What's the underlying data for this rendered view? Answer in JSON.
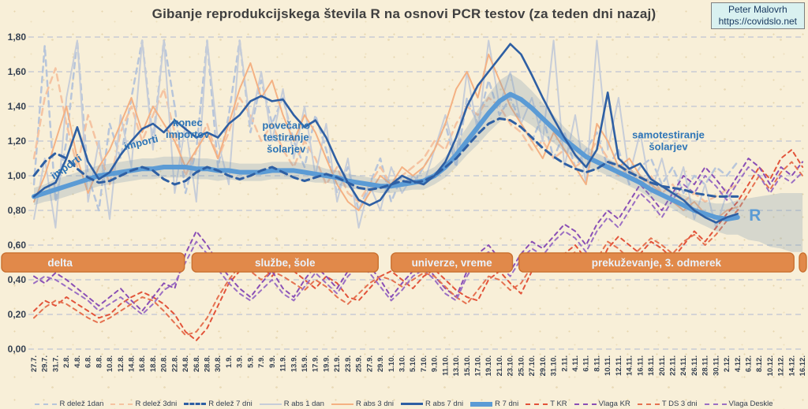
{
  "header": {
    "title": "Gibanje reprodukcijskega števila R na osnovi PCR testov (za teden dni nazaj)",
    "credit_line1": "Peter Malovrh",
    "credit_line2": "https://covidslo.net"
  },
  "chart_data": {
    "type": "line",
    "title": "Gibanje reprodukcijskega števila R na osnovi PCR testov (za teden dni nazaj)",
    "ylim": [
      0,
      1.8
    ],
    "y_step": 0.2,
    "decimal_comma": true,
    "grid": "horizontal-dashed",
    "legend_position": "bottom",
    "x_labels": [
      "27.7.",
      "29.7.",
      "31.7.",
      "2.8.",
      "4.8.",
      "6.8.",
      "8.8.",
      "10.8.",
      "12.8.",
      "14.8.",
      "16.8.",
      "18.8.",
      "20.8.",
      "22.8.",
      "24.8.",
      "26.8.",
      "28.8.",
      "30.8.",
      "1.9.",
      "3.9.",
      "5.9.",
      "7.9.",
      "9.9.",
      "11.9.",
      "13.9.",
      "15.9.",
      "17.9.",
      "19.9.",
      "21.9.",
      "23.9.",
      "25.9.",
      "27.9.",
      "29.9.",
      "1.10.",
      "3.10.",
      "5.10.",
      "7.10.",
      "9.10.",
      "11.10.",
      "13.10.",
      "15.10.",
      "17.10.",
      "19.10.",
      "21.10.",
      "23.10.",
      "25.10.",
      "27.10.",
      "29.10.",
      "31.10.",
      "2.11.",
      "4.11.",
      "6.11.",
      "8.11.",
      "10.11.",
      "12.11.",
      "14.11.",
      "16.11.",
      "18.11.",
      "20.11.",
      "22.11.",
      "24.11.",
      "26.11.",
      "28.11.",
      "30.11.",
      "2.12.",
      "4.12.",
      "6.12.",
      "8.12.",
      "10.12.",
      "12.12.",
      "14.12.",
      "16.12."
    ],
    "series": [
      {
        "name": "R delež 1dan",
        "color": "#b7c5da",
        "width": 2.5,
        "dash": "7 6",
        "values": [
          0.95,
          1.75,
          0.85,
          1.2,
          1.78,
          1.0,
          0.8,
          1.3,
          1.1,
          1.45,
          1.78,
          1.2,
          1.78,
          1.4,
          0.9,
          1.15,
          1.78,
          1.05,
          1.35,
          1.78,
          1.25,
          1.55,
          1.3,
          1.45,
          1.2,
          1.05,
          1.35,
          1.15,
          0.9,
          1.05,
          0.8,
          0.95,
          1.1,
          0.85,
          1.0,
          0.95,
          1.05,
          1.15,
          1.3,
          1.05,
          1.45,
          1.3,
          1.55,
          1.35,
          1.45,
          1.3,
          1.2,
          1.35,
          1.1,
          1.25,
          1.05,
          1.15,
          1.25,
          1.05,
          1.15,
          0.95,
          1.05,
          1.1,
          0.95,
          1.05,
          0.9,
          1.0,
          0.95,
          1.05,
          1.0,
          1.08,
          null,
          null,
          null,
          null,
          null,
          null
        ]
      },
      {
        "name": "R delež 3dni",
        "color": "#f5c3a1",
        "width": 2.5,
        "dash": "8 6",
        "values": [
          1.1,
          1.45,
          1.62,
          1.3,
          1.05,
          1.35,
          1.15,
          0.95,
          1.25,
          1.4,
          1.2,
          1.35,
          1.5,
          1.25,
          1.0,
          1.15,
          1.3,
          1.1,
          1.25,
          1.45,
          1.35,
          1.2,
          1.3,
          1.15,
          1.05,
          1.2,
          1.1,
          0.95,
          1.05,
          0.9,
          0.85,
          0.95,
          1.05,
          0.95,
          1.0,
          1.05,
          1.1,
          1.2,
          1.15,
          1.3,
          1.4,
          1.35,
          1.45,
          1.4,
          1.3,
          1.25,
          1.15,
          1.2,
          1.1,
          1.15,
          1.05,
          1.1,
          1.2,
          1.1,
          1.0,
          1.05,
          0.95,
          1.0,
          0.9,
          0.95,
          0.85,
          0.9,
          0.85,
          0.88,
          0.92,
          0.95,
          null,
          null,
          null,
          null,
          null,
          null
        ]
      },
      {
        "name": "R delež 7 dni",
        "color": "#2e5fa3",
        "width": 3,
        "dash": "9 6",
        "values": [
          1.0,
          1.08,
          1.13,
          1.1,
          1.04,
          0.99,
          0.96,
          0.97,
          1.0,
          1.03,
          1.05,
          1.03,
          0.98,
          0.95,
          0.97,
          1.02,
          1.05,
          1.03,
          1.0,
          0.98,
          1.0,
          1.03,
          1.05,
          1.02,
          0.99,
          0.97,
          0.99,
          1.01,
          0.99,
          0.96,
          0.93,
          0.92,
          0.93,
          0.95,
          0.97,
          0.96,
          0.97,
          1.0,
          1.05,
          1.1,
          1.17,
          1.24,
          1.3,
          1.33,
          1.32,
          1.28,
          1.22,
          1.16,
          1.11,
          1.07,
          1.04,
          1.02,
          1.04,
          1.08,
          1.06,
          1.02,
          0.99,
          0.96,
          0.94,
          0.93,
          0.92,
          0.9,
          0.89,
          0.88,
          0.88,
          0.88,
          null,
          null,
          null,
          null,
          null,
          null
        ]
      },
      {
        "name": "R abs 1 dan",
        "color": "#c7cdd8",
        "width": 2,
        "dash": null,
        "values": [
          0.75,
          1.1,
          0.7,
          1.45,
          1.78,
          0.85,
          1.2,
          0.75,
          1.35,
          1.05,
          1.78,
          1.15,
          1.78,
          0.9,
          1.3,
          0.85,
          1.78,
          1.2,
          0.95,
          1.78,
          1.3,
          1.6,
          1.2,
          1.5,
          1.1,
          1.4,
          1.0,
          1.3,
          0.85,
          1.1,
          0.7,
          0.95,
          0.8,
          1.05,
          0.9,
          1.0,
          0.95,
          1.15,
          1.35,
          1.1,
          1.6,
          1.25,
          1.78,
          1.4,
          1.6,
          1.3,
          1.45,
          1.2,
          1.78,
          1.05,
          1.35,
          0.95,
          1.78,
          1.15,
          1.45,
          1.0,
          1.25,
          0.9,
          1.1,
          0.85,
          1.05,
          0.75,
          0.95,
          0.7,
          0.9,
          0.8,
          null,
          null,
          null,
          null,
          null,
          null
        ]
      },
      {
        "name": "R abs 3 dni",
        "color": "#f4b183",
        "width": 2,
        "dash": null,
        "values": [
          0.85,
          1.0,
          1.2,
          1.4,
          1.1,
          0.9,
          1.05,
          1.15,
          1.3,
          1.45,
          1.25,
          1.4,
          1.3,
          1.2,
          1.05,
          1.15,
          1.25,
          1.1,
          1.3,
          1.5,
          1.65,
          1.45,
          1.55,
          1.35,
          1.2,
          1.35,
          1.25,
          1.1,
          0.95,
          0.85,
          0.8,
          0.9,
          1.0,
          0.95,
          1.05,
          1.0,
          1.05,
          1.15,
          1.3,
          1.5,
          1.6,
          1.45,
          1.7,
          1.55,
          1.4,
          1.3,
          1.2,
          1.1,
          1.25,
          1.15,
          1.05,
          0.95,
          1.3,
          1.2,
          1.05,
          1.1,
          1.0,
          0.95,
          0.9,
          0.85,
          0.8,
          0.85,
          0.78,
          0.75,
          0.8,
          0.82,
          null,
          null,
          null,
          null,
          null,
          null
        ]
      },
      {
        "name": "R abs 7 dni",
        "color": "#2e5fa3",
        "width": 2.6,
        "dash": null,
        "values": [
          0.88,
          0.93,
          0.96,
          1.1,
          1.28,
          1.08,
          0.98,
          1.02,
          1.12,
          1.2,
          1.27,
          1.3,
          1.25,
          1.32,
          1.27,
          1.22,
          1.25,
          1.22,
          1.3,
          1.35,
          1.43,
          1.46,
          1.43,
          1.44,
          1.35,
          1.28,
          1.32,
          1.22,
          1.08,
          0.96,
          0.86,
          0.83,
          0.86,
          0.95,
          1.0,
          0.97,
          0.95,
          1.0,
          1.08,
          1.22,
          1.4,
          1.52,
          1.6,
          1.68,
          1.76,
          1.7,
          1.58,
          1.45,
          1.33,
          1.22,
          1.12,
          1.05,
          1.15,
          1.48,
          1.1,
          1.04,
          1.07,
          0.98,
          0.94,
          0.9,
          0.86,
          0.8,
          0.76,
          0.73,
          0.76,
          0.78,
          null,
          null,
          null,
          null,
          null,
          null
        ]
      },
      {
        "name": "R 7 dni",
        "color": "#5b9bd5",
        "width": 6,
        "dash": null,
        "values": [
          0.88,
          0.9,
          0.92,
          0.94,
          0.96,
          0.98,
          1.0,
          1.01,
          1.02,
          1.03,
          1.04,
          1.04,
          1.05,
          1.05,
          1.05,
          1.04,
          1.04,
          1.03,
          1.03,
          1.02,
          1.02,
          1.02,
          1.03,
          1.03,
          1.03,
          1.02,
          1.01,
          1.0,
          0.99,
          0.97,
          0.96,
          0.95,
          0.94,
          0.94,
          0.95,
          0.96,
          0.97,
          1.0,
          1.05,
          1.12,
          1.2,
          1.28,
          1.36,
          1.43,
          1.47,
          1.44,
          1.39,
          1.33,
          1.27,
          1.21,
          1.16,
          1.11,
          1.08,
          1.05,
          1.02,
          0.99,
          0.96,
          0.92,
          0.89,
          0.86,
          0.83,
          0.8,
          0.78,
          0.76,
          0.75,
          0.76,
          null,
          null,
          null,
          null,
          null,
          null
        ]
      },
      {
        "name": "T KR",
        "color": "#e2533a",
        "width": 2,
        "dash": "5 5",
        "values": [
          0.22,
          0.28,
          0.25,
          0.3,
          0.26,
          0.22,
          0.18,
          0.2,
          0.26,
          0.3,
          0.33,
          0.3,
          0.26,
          0.2,
          0.1,
          0.05,
          0.12,
          0.25,
          0.38,
          0.45,
          0.52,
          0.48,
          0.42,
          0.5,
          0.45,
          0.4,
          0.35,
          0.42,
          0.38,
          0.3,
          0.28,
          0.35,
          0.42,
          0.45,
          0.4,
          0.35,
          0.42,
          0.46,
          0.4,
          0.34,
          0.3,
          0.28,
          0.4,
          0.45,
          0.38,
          0.32,
          0.45,
          0.52,
          0.48,
          0.55,
          0.6,
          0.52,
          0.45,
          0.58,
          0.65,
          0.6,
          0.55,
          0.62,
          0.58,
          0.52,
          0.6,
          0.68,
          0.62,
          0.7,
          0.78,
          0.85,
          0.95,
          1.05,
          0.98,
          1.1,
          1.15,
          1.05
        ]
      },
      {
        "name": "Vlaga KR",
        "color": "#8a4fb5",
        "width": 2,
        "dash": "5 5",
        "values": [
          0.42,
          0.38,
          0.44,
          0.4,
          0.35,
          0.3,
          0.25,
          0.3,
          0.35,
          0.28,
          0.22,
          0.3,
          0.38,
          0.35,
          0.55,
          0.68,
          0.6,
          0.5,
          0.42,
          0.35,
          0.3,
          0.38,
          0.45,
          0.35,
          0.3,
          0.4,
          0.48,
          0.42,
          0.35,
          0.45,
          0.52,
          0.48,
          0.4,
          0.3,
          0.38,
          0.45,
          0.5,
          0.42,
          0.35,
          0.3,
          0.45,
          0.55,
          0.6,
          0.52,
          0.45,
          0.55,
          0.62,
          0.58,
          0.65,
          0.72,
          0.68,
          0.6,
          0.72,
          0.8,
          0.75,
          0.85,
          0.95,
          0.88,
          0.8,
          0.9,
          1.0,
          0.95,
          1.05,
          0.98,
          0.9,
          1.0,
          1.1,
          1.05,
          0.95,
          1.05,
          1.0,
          1.08
        ]
      },
      {
        "name": "T DS 3 dni",
        "color": "#e57251",
        "width": 2,
        "dash": "5 5",
        "values": [
          0.18,
          0.24,
          0.28,
          0.26,
          0.22,
          0.18,
          0.15,
          0.18,
          0.22,
          0.26,
          0.3,
          0.28,
          0.22,
          0.15,
          0.08,
          0.1,
          0.18,
          0.3,
          0.4,
          0.48,
          0.45,
          0.4,
          0.45,
          0.42,
          0.38,
          0.34,
          0.4,
          0.36,
          0.3,
          0.26,
          0.32,
          0.38,
          0.42,
          0.4,
          0.36,
          0.4,
          0.44,
          0.42,
          0.36,
          0.3,
          0.26,
          0.34,
          0.42,
          0.4,
          0.34,
          0.38,
          0.48,
          0.5,
          0.45,
          0.52,
          0.56,
          0.48,
          0.52,
          0.62,
          0.58,
          0.52,
          0.58,
          0.64,
          0.6,
          0.55,
          0.62,
          0.66,
          0.6,
          0.66,
          0.74,
          0.8,
          0.9,
          1.0,
          0.92,
          1.02,
          1.08,
          1.0
        ]
      },
      {
        "name": "Vlaga Deskle",
        "color": "#9b6fc3",
        "width": 2,
        "dash": "5 5",
        "values": [
          0.38,
          0.42,
          0.4,
          0.36,
          0.32,
          0.28,
          0.22,
          0.26,
          0.3,
          0.25,
          0.2,
          0.26,
          0.34,
          0.38,
          0.5,
          0.62,
          0.55,
          0.46,
          0.38,
          0.32,
          0.28,
          0.34,
          0.4,
          0.32,
          0.28,
          0.36,
          0.44,
          0.38,
          0.32,
          0.42,
          0.48,
          0.44,
          0.36,
          0.28,
          0.34,
          0.42,
          0.46,
          0.4,
          0.32,
          0.28,
          0.42,
          0.52,
          0.56,
          0.48,
          0.42,
          0.52,
          0.58,
          0.54,
          0.62,
          0.68,
          0.64,
          0.56,
          0.68,
          0.76,
          0.7,
          0.8,
          0.9,
          0.84,
          0.76,
          0.86,
          0.95,
          0.9,
          1.0,
          0.94,
          0.86,
          0.96,
          1.05,
          1.0,
          0.9,
          1.0,
          0.96,
          1.02
        ]
      }
    ],
    "ci_band": {
      "color": "rgba(125,156,176,0.28)",
      "center": [
        0.88,
        0.9,
        0.92,
        0.94,
        0.96,
        0.98,
        1.0,
        1.01,
        1.02,
        1.03,
        1.04,
        1.04,
        1.05,
        1.05,
        1.05,
        1.04,
        1.04,
        1.03,
        1.03,
        1.02,
        1.02,
        1.02,
        1.03,
        1.03,
        1.03,
        1.02,
        1.01,
        1.0,
        0.99,
        0.97,
        0.96,
        0.95,
        0.94,
        0.94,
        0.95,
        0.96,
        0.97,
        1.0,
        1.05,
        1.12,
        1.2,
        1.28,
        1.36,
        1.43,
        1.47,
        1.44,
        1.39,
        1.33,
        1.27,
        1.21,
        1.16,
        1.11,
        1.08,
        1.05,
        1.02,
        0.99,
        0.96,
        0.92,
        0.89,
        0.86,
        0.83,
        0.8,
        0.78,
        0.76,
        0.75,
        0.76,
        0.75,
        0.75,
        0.74,
        0.74,
        0.73,
        0.73
      ],
      "halfwidth": [
        0.05,
        0.05,
        0.06,
        0.06,
        0.06,
        0.06,
        0.06,
        0.06,
        0.06,
        0.06,
        0.06,
        0.06,
        0.06,
        0.06,
        0.06,
        0.06,
        0.06,
        0.06,
        0.05,
        0.05,
        0.05,
        0.05,
        0.05,
        0.05,
        0.05,
        0.05,
        0.05,
        0.04,
        0.04,
        0.04,
        0.04,
        0.04,
        0.04,
        0.04,
        0.04,
        0.04,
        0.05,
        0.05,
        0.06,
        0.07,
        0.08,
        0.1,
        0.11,
        0.12,
        0.12,
        0.11,
        0.1,
        0.09,
        0.08,
        0.07,
        0.06,
        0.06,
        0.05,
        0.05,
        0.05,
        0.05,
        0.05,
        0.05,
        0.05,
        0.05,
        0.06,
        0.06,
        0.07,
        0.08,
        0.09,
        0.1,
        0.12,
        0.13,
        0.15,
        0.16,
        0.17,
        0.17
      ]
    },
    "phase_bands": [
      {
        "label": "delta",
        "start": -3.0,
        "end": 13.9,
        "label_pos": 0.32
      },
      {
        "label": "službe, šole",
        "start": 14.6,
        "end": 31.8,
        "label_pos": 0.5
      },
      {
        "label": "univerze, vreme",
        "start": 33.0,
        "end": 44.2,
        "label_pos": 0.5
      },
      {
        "label": "prekuževanje, 3. odmerek",
        "start": 44.8,
        "end": 70.2,
        "label_pos": 0.5
      },
      {
        "label": "",
        "start": 70.7,
        "end": 73.5,
        "label_pos": 0.5
      }
    ],
    "band_style": {
      "fill": "#e1894a",
      "stroke": "#c9702f",
      "text_color": "#e9f2fb",
      "v_top": 0.555,
      "v_bottom": 0.445
    },
    "annotations": [
      {
        "lines": [
          "importi"
        ],
        "i": 3.0,
        "v": 1.05,
        "rot": -35,
        "size": 13,
        "color": "#2e75b6"
      },
      {
        "lines": [
          "importi"
        ],
        "i": 9.9,
        "v": 1.19,
        "rot": -14,
        "size": 13,
        "color": "#2e75b6"
      },
      {
        "lines": [
          "konec",
          "importov"
        ],
        "i": 14.2,
        "v": 1.27,
        "rot": 0,
        "size": 13,
        "color": "#2e75b6"
      },
      {
        "lines": [
          "povečano",
          "testiranje",
          "šolarjev"
        ],
        "i": 23.3,
        "v": 1.22,
        "rot": 0,
        "size": 13,
        "color": "#2e75b6"
      },
      {
        "lines": [
          "samotestiranje",
          "šolarjev"
        ],
        "i": 58.6,
        "v": 1.2,
        "rot": 0,
        "size": 13,
        "color": "#2e75b6"
      },
      {
        "lines": [
          "R"
        ],
        "i": 66.6,
        "v": 0.76,
        "rot": 0,
        "size": 21,
        "color": "#5b9bd5"
      }
    ]
  }
}
